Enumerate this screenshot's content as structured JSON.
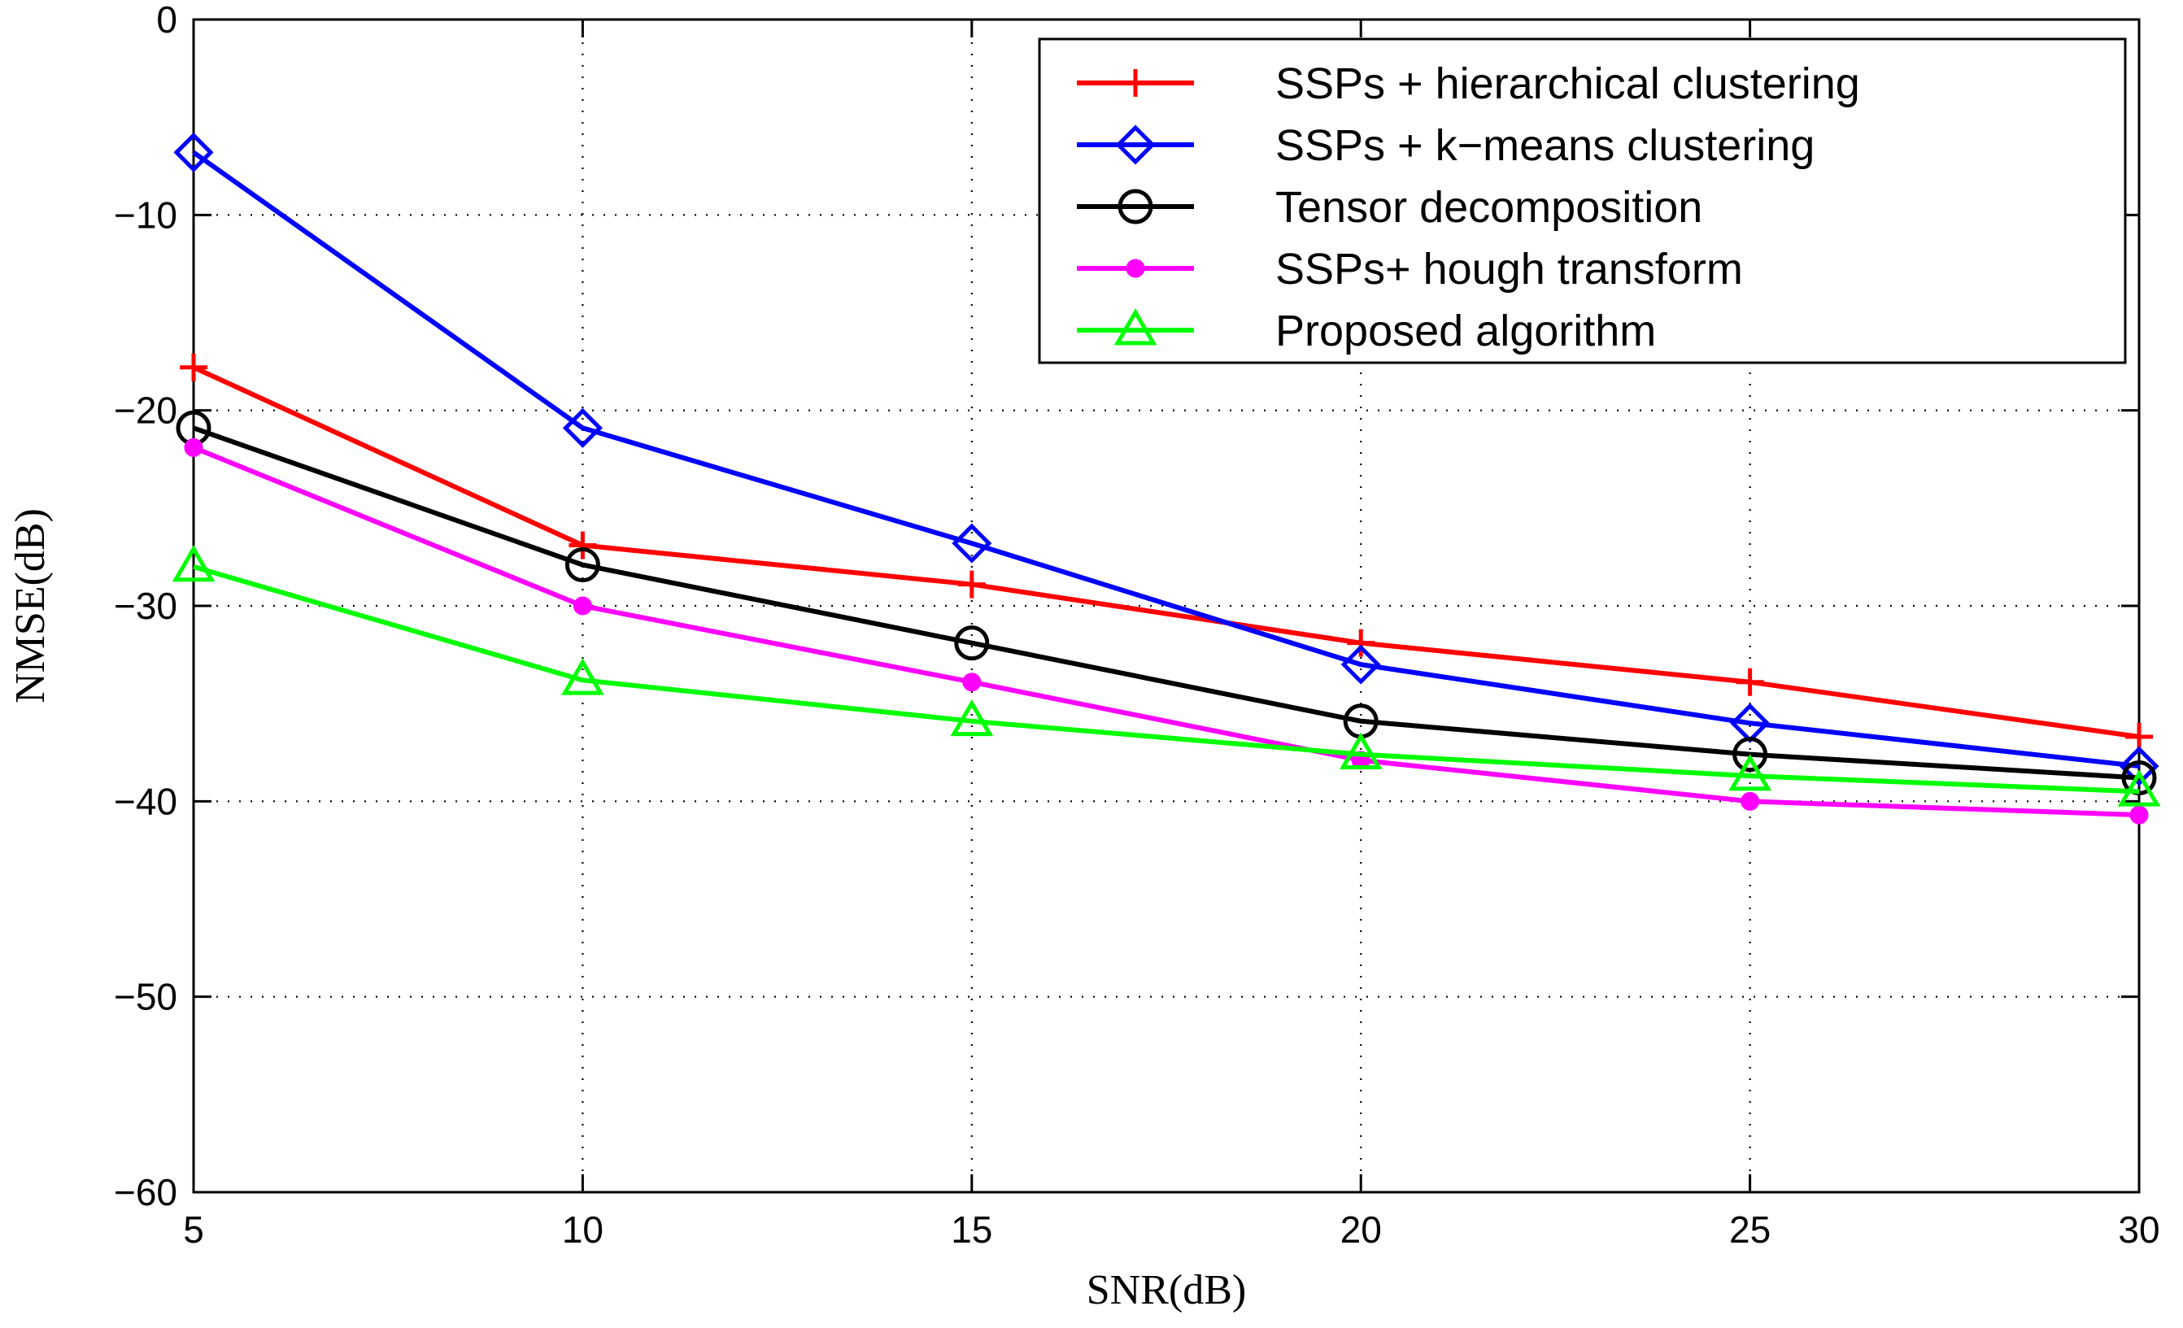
{
  "chart_data": {
    "type": "line",
    "title": "",
    "xlabel": "SNR(dB)",
    "ylabel": "NMSE(dB)",
    "x": [
      5,
      10,
      15,
      20,
      25,
      30
    ],
    "xlim": [
      5,
      30
    ],
    "ylim": [
      -60,
      0
    ],
    "xticks": [
      5,
      10,
      15,
      20,
      25,
      30
    ],
    "yticks": [
      0,
      -10,
      -20,
      -30,
      -40,
      -50,
      -60
    ],
    "xtick_labels": [
      "5",
      "10",
      "15",
      "20",
      "25",
      "30"
    ],
    "ytick_labels": [
      "0",
      "−10",
      "−20",
      "−30",
      "−40",
      "−50",
      "−60"
    ],
    "grid": true,
    "legend_position": "top-right",
    "series": [
      {
        "name": "SSPs + hierarchical clustering",
        "color": "#ff0000",
        "marker": "plus",
        "values": [
          -17.8,
          -26.9,
          -28.9,
          -31.9,
          -33.9,
          -36.7
        ]
      },
      {
        "name": "SSPs + k−means clustering",
        "color": "#0000ff",
        "marker": "diamond",
        "values": [
          -6.8,
          -20.9,
          -26.8,
          -33.0,
          -36.0,
          -38.2
        ]
      },
      {
        "name": "Tensor decomposition",
        "color": "#000000",
        "marker": "circle",
        "values": [
          -20.9,
          -27.9,
          -31.9,
          -35.9,
          -37.6,
          -38.8
        ]
      },
      {
        "name": "SSPs+ hough transform",
        "color": "#ff00ff",
        "marker": "dot",
        "values": [
          -21.9,
          -30.0,
          -33.9,
          -37.9,
          -40.0,
          -40.7
        ]
      },
      {
        "name": "Proposed algorithm",
        "color": "#00ff00",
        "marker": "triangle",
        "values": [
          -28.0,
          -33.8,
          -35.9,
          -37.6,
          -38.7,
          -39.5
        ]
      }
    ]
  }
}
